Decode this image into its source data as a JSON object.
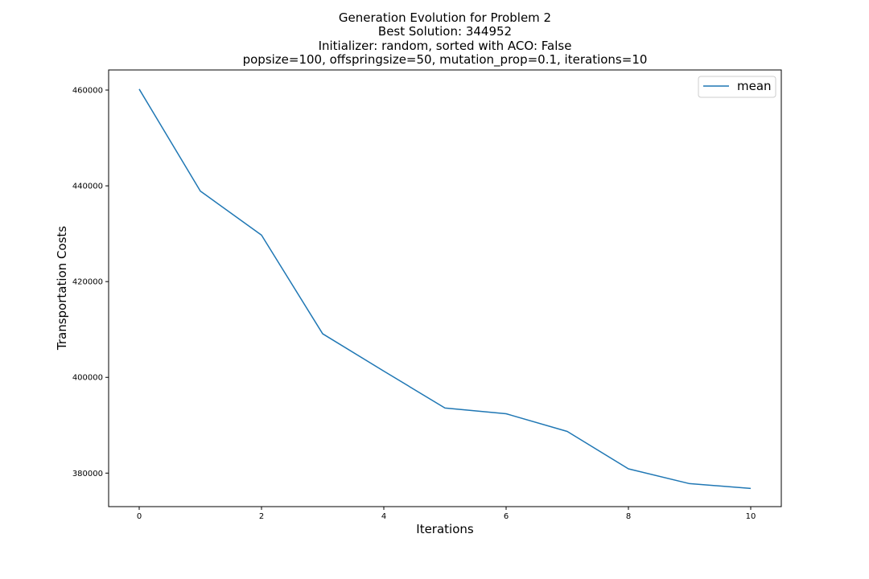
{
  "chart_data": {
    "type": "line",
    "title_lines": [
      "Generation Evolution for Problem 2",
      "Best Solution: 344952",
      "Initializer: random, sorted with ACO: False",
      "popsize=100, offspringsize=50, mutation_prop=0.1, iterations=10"
    ],
    "xlabel": "Iterations",
    "ylabel": "Transportation Costs",
    "x": [
      0,
      1,
      2,
      3,
      4,
      5,
      6,
      7,
      8,
      9,
      10
    ],
    "series": [
      {
        "name": "mean",
        "color": "#1f77b4",
        "values": [
          460200,
          438900,
          429700,
          409100,
          401300,
          393600,
          392400,
          388700,
          380900,
          377800,
          376800
        ]
      }
    ],
    "xlim": [
      -0.5,
      10.5
    ],
    "ylim": [
      373000,
      464200
    ],
    "xticks": [
      0,
      2,
      4,
      6,
      8,
      10
    ],
    "xtick_labels": [
      "0",
      "2",
      "4",
      "6",
      "8",
      "10"
    ],
    "yticks": [
      380000,
      400000,
      420000,
      440000,
      460000
    ],
    "ytick_labels": [
      "380000",
      "400000",
      "420000",
      "440000",
      "460000"
    ],
    "grid": false,
    "legend_position": "top-right"
  }
}
